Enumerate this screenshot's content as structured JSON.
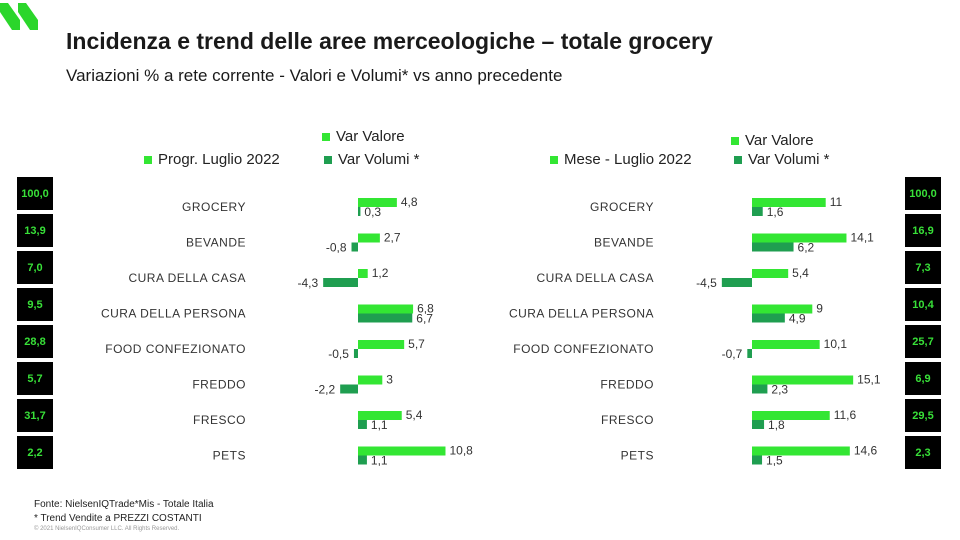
{
  "title": "Incidenza e trend delle aree merceologiche – totale grocery",
  "subtitle": "Variazioni % a rete corrente - Valori e Volumi* vs anno precedente",
  "colors": {
    "valore": "#33e633",
    "volumi": "#1f9e50",
    "box_bg": "#000000",
    "box_text": "#38e038",
    "logo": "#2bd62b"
  },
  "left_legend": {
    "valore": "Var Valore",
    "period": "Progr. Luglio 2022",
    "volumi": "Var Volumi *"
  },
  "right_legend": {
    "valore": "Var Valore",
    "period": "Mese - Luglio 2022",
    "volumi": "Var Volumi *"
  },
  "left_incidence": [
    "100,0",
    "13,9",
    "7,0",
    "9,5",
    "28,8",
    "5,7",
    "31,7",
    "2,2"
  ],
  "right_incidence": [
    "100,0",
    "16,9",
    "7,3",
    "10,4",
    "25,7",
    "6,9",
    "29,5",
    "2,3"
  ],
  "chart_data": [
    {
      "type": "bar",
      "orientation": "horizontal",
      "categories": [
        "GROCERY",
        "BEVANDE",
        "CURA DELLA CASA",
        "CURA DELLA PERSONA",
        "FOOD CONFEZIONATO",
        "FREDDO",
        "FRESCO",
        "PETS"
      ],
      "series": [
        {
          "name": "Var Valore",
          "values": [
            4.8,
            2.7,
            1.2,
            6.8,
            5.7,
            3,
            5.4,
            10.8
          ],
          "labels": [
            "4,8",
            "2,7",
            "1,2",
            "6,8",
            "5,7",
            "3",
            "5,4",
            "10,8"
          ]
        },
        {
          "name": "Var Volumi *",
          "values": [
            0.3,
            -0.8,
            -4.3,
            6.7,
            -0.5,
            -2.2,
            1.1,
            1.1
          ],
          "labels": [
            "0,3",
            "-0,8",
            "-4,3",
            "6,7",
            "-0,5",
            "-2,2",
            "1,1",
            "1,1"
          ]
        }
      ]
    },
    {
      "type": "bar",
      "orientation": "horizontal",
      "categories": [
        "GROCERY",
        "BEVANDE",
        "CURA DELLA CASA",
        "CURA DELLA PERSONA",
        "FOOD CONFEZIONATO",
        "FREDDO",
        "FRESCO",
        "PETS"
      ],
      "series": [
        {
          "name": "Var Valore",
          "values": [
            11,
            14.1,
            5.4,
            9,
            10.1,
            15.1,
            11.6,
            14.6
          ],
          "labels": [
            "11",
            "14,1",
            "5,4",
            "9",
            "10,1",
            "15,1",
            "11,6",
            "14,6"
          ]
        },
        {
          "name": "Var Volumi *",
          "values": [
            1.6,
            6.2,
            -4.5,
            4.9,
            -0.7,
            2.3,
            1.8,
            1.5
          ],
          "labels": [
            "1,6",
            "6,2",
            "-4,5",
            "4,9",
            "-0,7",
            "2,3",
            "1,8",
            "1,5"
          ]
        }
      ]
    }
  ],
  "source_line": "Fonte: NielsenIQTrade*Mis  - Totale Italia",
  "note_line": "* Trend Vendite a PREZZI COSTANTI",
  "copyright": "© 2021 NielsenIQConsumer LLC. All Rights Reserved."
}
